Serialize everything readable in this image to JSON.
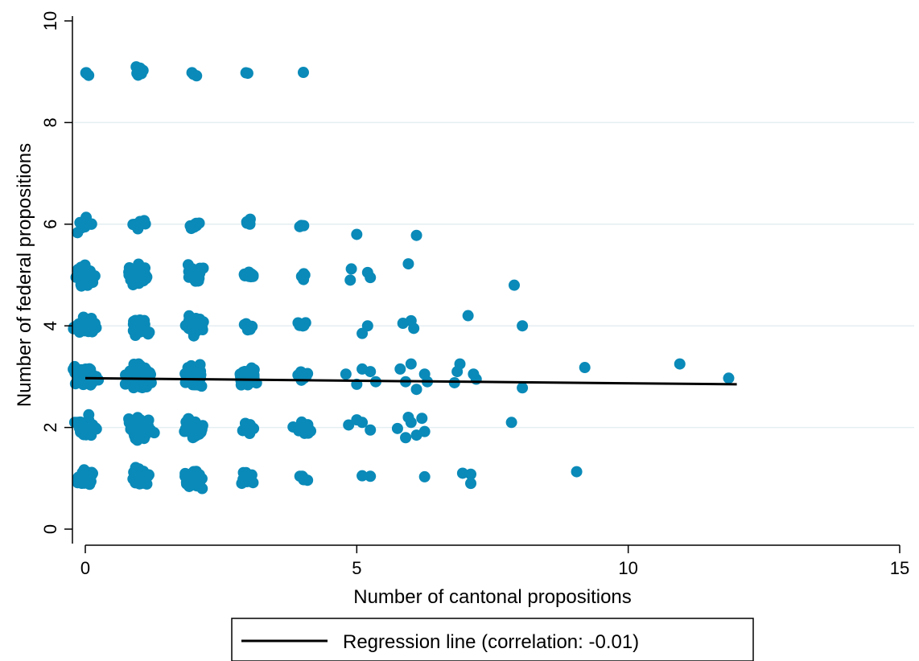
{
  "chart_data": {
    "type": "scatter",
    "xlabel": "Number of cantonal propositions",
    "ylabel": "Number of federal propositions",
    "xlim": [
      0,
      15
    ],
    "ylim": [
      0,
      10
    ],
    "xticks": [
      "0",
      "5",
      "10",
      "15"
    ],
    "yticks": [
      "0",
      "2",
      "4",
      "6",
      "8",
      "10"
    ],
    "grid": "horizontal",
    "marker_color": "#0a8ab8",
    "line_color": "#000000",
    "legend_placement": "bottom-center",
    "legend_label": "Regression line (correlation: -0.01)",
    "regression_line": {
      "x": [
        0,
        12
      ],
      "y": [
        2.97,
        2.85
      ]
    },
    "clusters": [
      {
        "x": 0,
        "y": 1,
        "n": 45
      },
      {
        "x": 1,
        "y": 1,
        "n": 45
      },
      {
        "x": 2,
        "y": 1,
        "n": 45
      },
      {
        "x": 3,
        "y": 1,
        "n": 22
      },
      {
        "x": 4,
        "y": 1,
        "n": 5
      },
      {
        "x": 0,
        "y": 2,
        "n": 55
      },
      {
        "x": 1,
        "y": 2,
        "n": 70
      },
      {
        "x": 2,
        "y": 2,
        "n": 50
      },
      {
        "x": 3,
        "y": 2,
        "n": 18
      },
      {
        "x": 4,
        "y": 2,
        "n": 25
      },
      {
        "x": 0,
        "y": 3,
        "n": 65
      },
      {
        "x": 1,
        "y": 3,
        "n": 90
      },
      {
        "x": 2,
        "y": 3,
        "n": 70
      },
      {
        "x": 3,
        "y": 3,
        "n": 40
      },
      {
        "x": 4,
        "y": 3,
        "n": 22
      },
      {
        "x": 0,
        "y": 4,
        "n": 45
      },
      {
        "x": 1,
        "y": 4,
        "n": 45
      },
      {
        "x": 2,
        "y": 4,
        "n": 35
      },
      {
        "x": 3,
        "y": 4,
        "n": 10
      },
      {
        "x": 4,
        "y": 4,
        "n": 7
      },
      {
        "x": 0,
        "y": 5,
        "n": 45
      },
      {
        "x": 1,
        "y": 5,
        "n": 50
      },
      {
        "x": 2,
        "y": 5,
        "n": 35
      },
      {
        "x": 3,
        "y": 5,
        "n": 12
      },
      {
        "x": 4,
        "y": 5,
        "n": 6
      },
      {
        "x": 0,
        "y": 6,
        "n": 18
      },
      {
        "x": 1,
        "y": 6,
        "n": 12
      },
      {
        "x": 2,
        "y": 6,
        "n": 8
      },
      {
        "x": 3,
        "y": 6,
        "n": 6
      },
      {
        "x": 4,
        "y": 6,
        "n": 3
      },
      {
        "x": 0,
        "y": 9,
        "n": 4
      },
      {
        "x": 1,
        "y": 9,
        "n": 7
      },
      {
        "x": 2,
        "y": 9,
        "n": 3
      },
      {
        "x": 3,
        "y": 9,
        "n": 2
      },
      {
        "x": 4,
        "y": 9,
        "n": 1
      }
    ],
    "points": [
      [
        5.0,
        5.8
      ],
      [
        6.1,
        5.78
      ],
      [
        4.9,
        5.12
      ],
      [
        5.2,
        5.05
      ],
      [
        4.88,
        4.9
      ],
      [
        5.25,
        4.95
      ],
      [
        5.95,
        5.22
      ],
      [
        7.9,
        4.8
      ],
      [
        5.2,
        4.0
      ],
      [
        5.1,
        3.85
      ],
      [
        5.85,
        4.05
      ],
      [
        6.0,
        4.1
      ],
      [
        6.05,
        3.95
      ],
      [
        7.05,
        4.2
      ],
      [
        8.05,
        4.0
      ],
      [
        4.8,
        3.05
      ],
      [
        5.1,
        3.15
      ],
      [
        5.25,
        3.1
      ],
      [
        5.0,
        2.85
      ],
      [
        5.35,
        2.9
      ],
      [
        5.8,
        3.15
      ],
      [
        6.0,
        3.25
      ],
      [
        5.9,
        2.9
      ],
      [
        6.1,
        2.75
      ],
      [
        6.25,
        3.05
      ],
      [
        6.3,
        2.9
      ],
      [
        6.9,
        3.25
      ],
      [
        6.85,
        3.1
      ],
      [
        6.8,
        2.88
      ],
      [
        7.15,
        3.05
      ],
      [
        7.2,
        2.95
      ],
      [
        9.2,
        3.18
      ],
      [
        10.95,
        3.25
      ],
      [
        11.85,
        2.97
      ],
      [
        8.05,
        2.78
      ],
      [
        4.85,
        2.05
      ],
      [
        5.0,
        2.15
      ],
      [
        5.1,
        2.1
      ],
      [
        5.25,
        1.95
      ],
      [
        5.75,
        1.98
      ],
      [
        5.9,
        1.8
      ],
      [
        6.0,
        2.1
      ],
      [
        6.1,
        1.85
      ],
      [
        6.2,
        2.18
      ],
      [
        6.25,
        1.92
      ],
      [
        5.95,
        2.2
      ],
      [
        7.85,
        2.1
      ],
      [
        5.1,
        1.05
      ],
      [
        5.25,
        1.04
      ],
      [
        6.25,
        1.03
      ],
      [
        6.95,
        1.1
      ],
      [
        7.1,
        1.08
      ],
      [
        7.1,
        0.9
      ],
      [
        9.05,
        1.13
      ]
    ]
  }
}
